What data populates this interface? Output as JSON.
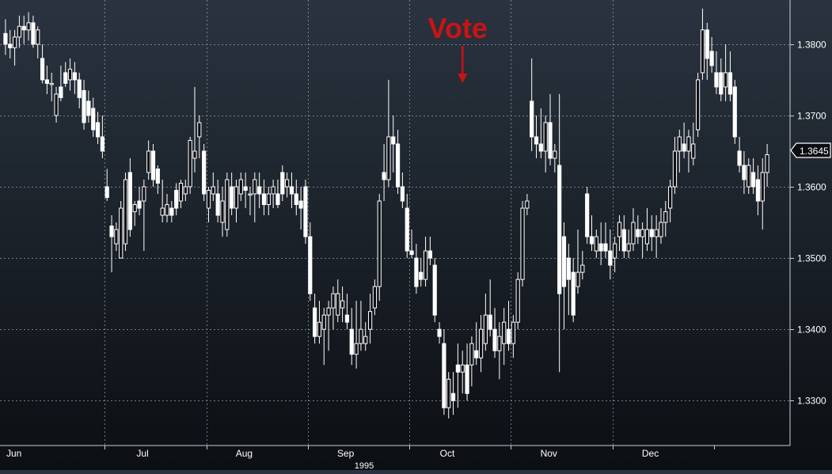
{
  "chart_data": {
    "type": "candlestick",
    "title": "",
    "annotation": {
      "text": "Vote",
      "color": "#c81414",
      "at_index": 99
    },
    "last_price": "1.3645",
    "x_year_label": "1995",
    "x_month_labels": [
      "Jun",
      "Jul",
      "Aug",
      "Sep",
      "Oct",
      "Nov",
      "Dec"
    ],
    "y_ticks": [
      "1.3300",
      "1.3400",
      "1.3500",
      "1.3600",
      "1.3700",
      "1.3800"
    ],
    "ylim": [
      1.3237,
      1.3862
    ],
    "grid": true,
    "colors": {
      "candle": "#ffffff",
      "grid": "#9aa4ae",
      "text": "#ffffff"
    },
    "candles": [
      [
        1.3815,
        1.3835,
        1.3785,
        1.38
      ],
      [
        1.38,
        1.382,
        1.378,
        1.3795
      ],
      [
        1.3795,
        1.382,
        1.377,
        1.381
      ],
      [
        1.381,
        1.384,
        1.3795,
        1.3825
      ],
      [
        1.3825,
        1.384,
        1.38,
        1.382
      ],
      [
        1.382,
        1.3845,
        1.3805,
        1.383
      ],
      [
        1.383,
        1.384,
        1.3795,
        1.38
      ],
      [
        1.38,
        1.3825,
        1.378,
        1.382
      ],
      [
        1.378,
        1.38,
        1.3745,
        1.375
      ],
      [
        1.375,
        1.377,
        1.373,
        1.3745
      ],
      [
        1.3745,
        1.376,
        1.372,
        1.3745
      ],
      [
        1.37,
        1.374,
        1.369,
        1.373
      ],
      [
        1.374,
        1.377,
        1.372,
        1.3725
      ],
      [
        1.376,
        1.3775,
        1.374,
        1.3745
      ],
      [
        1.375,
        1.378,
        1.3735,
        1.3765
      ],
      [
        1.376,
        1.3775,
        1.373,
        1.375
      ],
      [
        1.375,
        1.376,
        1.371,
        1.3725
      ],
      [
        1.3735,
        1.375,
        1.368,
        1.369
      ],
      [
        1.372,
        1.3735,
        1.369,
        1.37
      ],
      [
        1.371,
        1.3725,
        1.367,
        1.368
      ],
      [
        1.369,
        1.3705,
        1.366,
        1.367
      ],
      [
        1.367,
        1.37,
        1.364,
        1.365
      ],
      [
        1.36,
        1.3625,
        1.358,
        1.3585
      ],
      [
        1.3545,
        1.356,
        1.348,
        1.353
      ],
      [
        1.352,
        1.355,
        1.351,
        1.354
      ],
      [
        1.35,
        1.358,
        1.35,
        1.357
      ],
      [
        1.352,
        1.362,
        1.351,
        1.361
      ],
      [
        1.362,
        1.364,
        1.353,
        1.354
      ],
      [
        1.3565,
        1.358,
        1.3545,
        1.3575
      ],
      [
        1.358,
        1.36,
        1.356,
        1.357
      ],
      [
        1.358,
        1.361,
        1.351,
        1.36
      ],
      [
        1.362,
        1.3665,
        1.361,
        1.365
      ],
      [
        1.365,
        1.366,
        1.36,
        1.361
      ],
      [
        1.3625,
        1.363,
        1.359,
        1.3605
      ],
      [
        1.356,
        1.361,
        1.355,
        1.357
      ],
      [
        1.356,
        1.359,
        1.355,
        1.3575
      ],
      [
        1.357,
        1.358,
        1.355,
        1.356
      ],
      [
        1.3595,
        1.3605,
        1.356,
        1.357
      ],
      [
        1.358,
        1.361,
        1.357,
        1.3605
      ],
      [
        1.359,
        1.361,
        1.358,
        1.36
      ],
      [
        1.36,
        1.367,
        1.359,
        1.3665
      ],
      [
        1.364,
        1.374,
        1.362,
        1.365
      ],
      [
        1.367,
        1.37,
        1.364,
        1.369
      ],
      [
        1.365,
        1.366,
        1.358,
        1.359
      ],
      [
        1.357,
        1.36,
        1.355,
        1.3595
      ],
      [
        1.359,
        1.362,
        1.358,
        1.36
      ],
      [
        1.359,
        1.361,
        1.355,
        1.356
      ],
      [
        1.355,
        1.36,
        1.353,
        1.358
      ],
      [
        1.354,
        1.362,
        1.353,
        1.361
      ],
      [
        1.36,
        1.362,
        1.356,
        1.357
      ],
      [
        1.357,
        1.361,
        1.355,
        1.36
      ],
      [
        1.359,
        1.362,
        1.358,
        1.361
      ],
      [
        1.36,
        1.362,
        1.357,
        1.3595
      ],
      [
        1.359,
        1.36,
        1.356,
        1.359
      ],
      [
        1.359,
        1.362,
        1.355,
        1.361
      ],
      [
        1.36,
        1.362,
        1.357,
        1.359
      ],
      [
        1.359,
        1.361,
        1.356,
        1.3575
      ],
      [
        1.3575,
        1.36,
        1.356,
        1.359
      ],
      [
        1.359,
        1.361,
        1.357,
        1.36
      ],
      [
        1.359,
        1.361,
        1.357,
        1.3575
      ],
      [
        1.362,
        1.363,
        1.358,
        1.359
      ],
      [
        1.36,
        1.362,
        1.3585,
        1.361
      ],
      [
        1.36,
        1.362,
        1.357,
        1.359
      ],
      [
        1.359,
        1.361,
        1.356,
        1.3575
      ],
      [
        1.358,
        1.36,
        1.354,
        1.357
      ],
      [
        1.36,
        1.361,
        1.352,
        1.353
      ],
      [
        1.353,
        1.355,
        1.344,
        1.345
      ],
      [
        1.343,
        1.345,
        1.338,
        1.339
      ],
      [
        1.339,
        1.344,
        1.338,
        1.341
      ],
      [
        1.34,
        1.343,
        1.335,
        1.342
      ],
      [
        1.342,
        1.344,
        1.337,
        1.343
      ],
      [
        1.343,
        1.346,
        1.34,
        1.345
      ],
      [
        1.342,
        1.347,
        1.341,
        1.345
      ],
      [
        1.343,
        1.346,
        1.341,
        1.344
      ],
      [
        1.342,
        1.345,
        1.34,
        1.341
      ],
      [
        1.34,
        1.343,
        1.335,
        1.3365
      ],
      [
        1.3365,
        1.344,
        1.3345,
        1.338
      ],
      [
        1.338,
        1.344,
        1.337,
        1.34
      ],
      [
        1.338,
        1.341,
        1.337,
        1.339
      ],
      [
        1.34,
        1.345,
        1.338,
        1.3425
      ],
      [
        1.343,
        1.347,
        1.342,
        1.346
      ],
      [
        1.346,
        1.359,
        1.344,
        1.358
      ],
      [
        1.362,
        1.366,
        1.358,
        1.361
      ],
      [
        1.361,
        1.375,
        1.36,
        1.367
      ],
      [
        1.367,
        1.37,
        1.362,
        1.366
      ],
      [
        1.366,
        1.368,
        1.359,
        1.36
      ],
      [
        1.36,
        1.362,
        1.357,
        1.358
      ],
      [
        1.357,
        1.359,
        1.35,
        1.351
      ],
      [
        1.351,
        1.354,
        1.35,
        1.3505
      ],
      [
        1.35,
        1.352,
        1.345,
        1.346
      ],
      [
        1.348,
        1.35,
        1.346,
        1.347
      ],
      [
        1.347,
        1.353,
        1.346,
        1.351
      ],
      [
        1.351,
        1.353,
        1.349,
        1.35
      ],
      [
        1.349,
        1.35,
        1.341,
        1.342
      ],
      [
        1.34,
        1.341,
        1.338,
        1.339
      ],
      [
        1.338,
        1.34,
        1.328,
        1.329
      ],
      [
        1.329,
        1.334,
        1.3275,
        1.333
      ],
      [
        1.331,
        1.334,
        1.328,
        1.33
      ],
      [
        1.335,
        1.338,
        1.329,
        1.334
      ],
      [
        1.334,
        1.337,
        1.331,
        1.335
      ],
      [
        1.335,
        1.338,
        1.33,
        1.331
      ],
      [
        1.335,
        1.339,
        1.332,
        1.338
      ],
      [
        1.337,
        1.341,
        1.335,
        1.336
      ],
      [
        1.336,
        1.342,
        1.334,
        1.34
      ],
      [
        1.338,
        1.345,
        1.337,
        1.342
      ],
      [
        1.342,
        1.347,
        1.339,
        1.34
      ],
      [
        1.34,
        1.343,
        1.336,
        1.337
      ],
      [
        1.337,
        1.341,
        1.333,
        1.339
      ],
      [
        1.338,
        1.343,
        1.335,
        1.341
      ],
      [
        1.34,
        1.344,
        1.337,
        1.338
      ],
      [
        1.338,
        1.342,
        1.336,
        1.341
      ],
      [
        1.341,
        1.348,
        1.34,
        1.347
      ],
      [
        1.347,
        1.358,
        1.346,
        1.357
      ],
      [
        1.357,
        1.359,
        1.356,
        1.358
      ],
      [
        1.372,
        1.378,
        1.365,
        1.367
      ],
      [
        1.367,
        1.37,
        1.364,
        1.366
      ],
      [
        1.366,
        1.371,
        1.364,
        1.365
      ],
      [
        1.365,
        1.37,
        1.362,
        1.369
      ],
      [
        1.369,
        1.373,
        1.363,
        1.364
      ],
      [
        1.364,
        1.366,
        1.362,
        1.365
      ],
      [
        1.363,
        1.373,
        1.334,
        1.345
      ],
      [
        1.353,
        1.355,
        1.34,
        1.346
      ],
      [
        1.35,
        1.352,
        1.342,
        1.347
      ],
      [
        1.348,
        1.35,
        1.341,
        1.342
      ],
      [
        1.346,
        1.354,
        1.345,
        1.348
      ],
      [
        1.348,
        1.351,
        1.347,
        1.349
      ],
      [
        1.359,
        1.36,
        1.352,
        1.353
      ],
      [
        1.353,
        1.356,
        1.351,
        1.352
      ],
      [
        1.351,
        1.354,
        1.35,
        1.353
      ],
      [
        1.352,
        1.355,
        1.349,
        1.351
      ],
      [
        1.352,
        1.355,
        1.35,
        1.351
      ],
      [
        1.351,
        1.354,
        1.347,
        1.349
      ],
      [
        1.35,
        1.353,
        1.348,
        1.352
      ],
      [
        1.353,
        1.356,
        1.351,
        1.355
      ],
      [
        1.354,
        1.356,
        1.35,
        1.351
      ],
      [
        1.351,
        1.354,
        1.35,
        1.352
      ],
      [
        1.352,
        1.357,
        1.351,
        1.355
      ],
      [
        1.354,
        1.356,
        1.352,
        1.353
      ],
      [
        1.353,
        1.355,
        1.35,
        1.354
      ],
      [
        1.352,
        1.357,
        1.351,
        1.354
      ],
      [
        1.354,
        1.356,
        1.351,
        1.353
      ],
      [
        1.353,
        1.356,
        1.35,
        1.354
      ],
      [
        1.353,
        1.357,
        1.352,
        1.355
      ],
      [
        1.355,
        1.358,
        1.353,
        1.3565
      ],
      [
        1.357,
        1.361,
        1.355,
        1.36
      ],
      [
        1.36,
        1.367,
        1.359,
        1.365
      ],
      [
        1.365,
        1.368,
        1.362,
        1.367
      ],
      [
        1.366,
        1.369,
        1.364,
        1.365
      ],
      [
        1.365,
        1.368,
        1.362,
        1.367
      ],
      [
        1.364,
        1.369,
        1.363,
        1.366
      ],
      [
        1.368,
        1.376,
        1.367,
        1.375
      ],
      [
        1.376,
        1.385,
        1.375,
        1.382
      ],
      [
        1.382,
        1.383,
        1.375,
        1.378
      ],
      [
        1.379,
        1.381,
        1.376,
        1.377
      ],
      [
        1.376,
        1.379,
        1.373,
        1.374
      ],
      [
        1.376,
        1.378,
        1.372,
        1.373
      ],
      [
        1.374,
        1.38,
        1.372,
        1.376
      ],
      [
        1.376,
        1.379,
        1.372,
        1.373
      ],
      [
        1.374,
        1.375,
        1.366,
        1.367
      ],
      [
        1.365,
        1.367,
        1.362,
        1.363
      ],
      [
        1.363,
        1.365,
        1.359,
        1.361
      ],
      [
        1.36,
        1.364,
        1.359,
        1.363
      ],
      [
        1.362,
        1.364,
        1.359,
        1.36
      ],
      [
        1.361,
        1.363,
        1.356,
        1.358
      ],
      [
        1.358,
        1.364,
        1.354,
        1.362
      ],
      [
        1.362,
        1.366,
        1.36,
        1.3645
      ]
    ]
  }
}
